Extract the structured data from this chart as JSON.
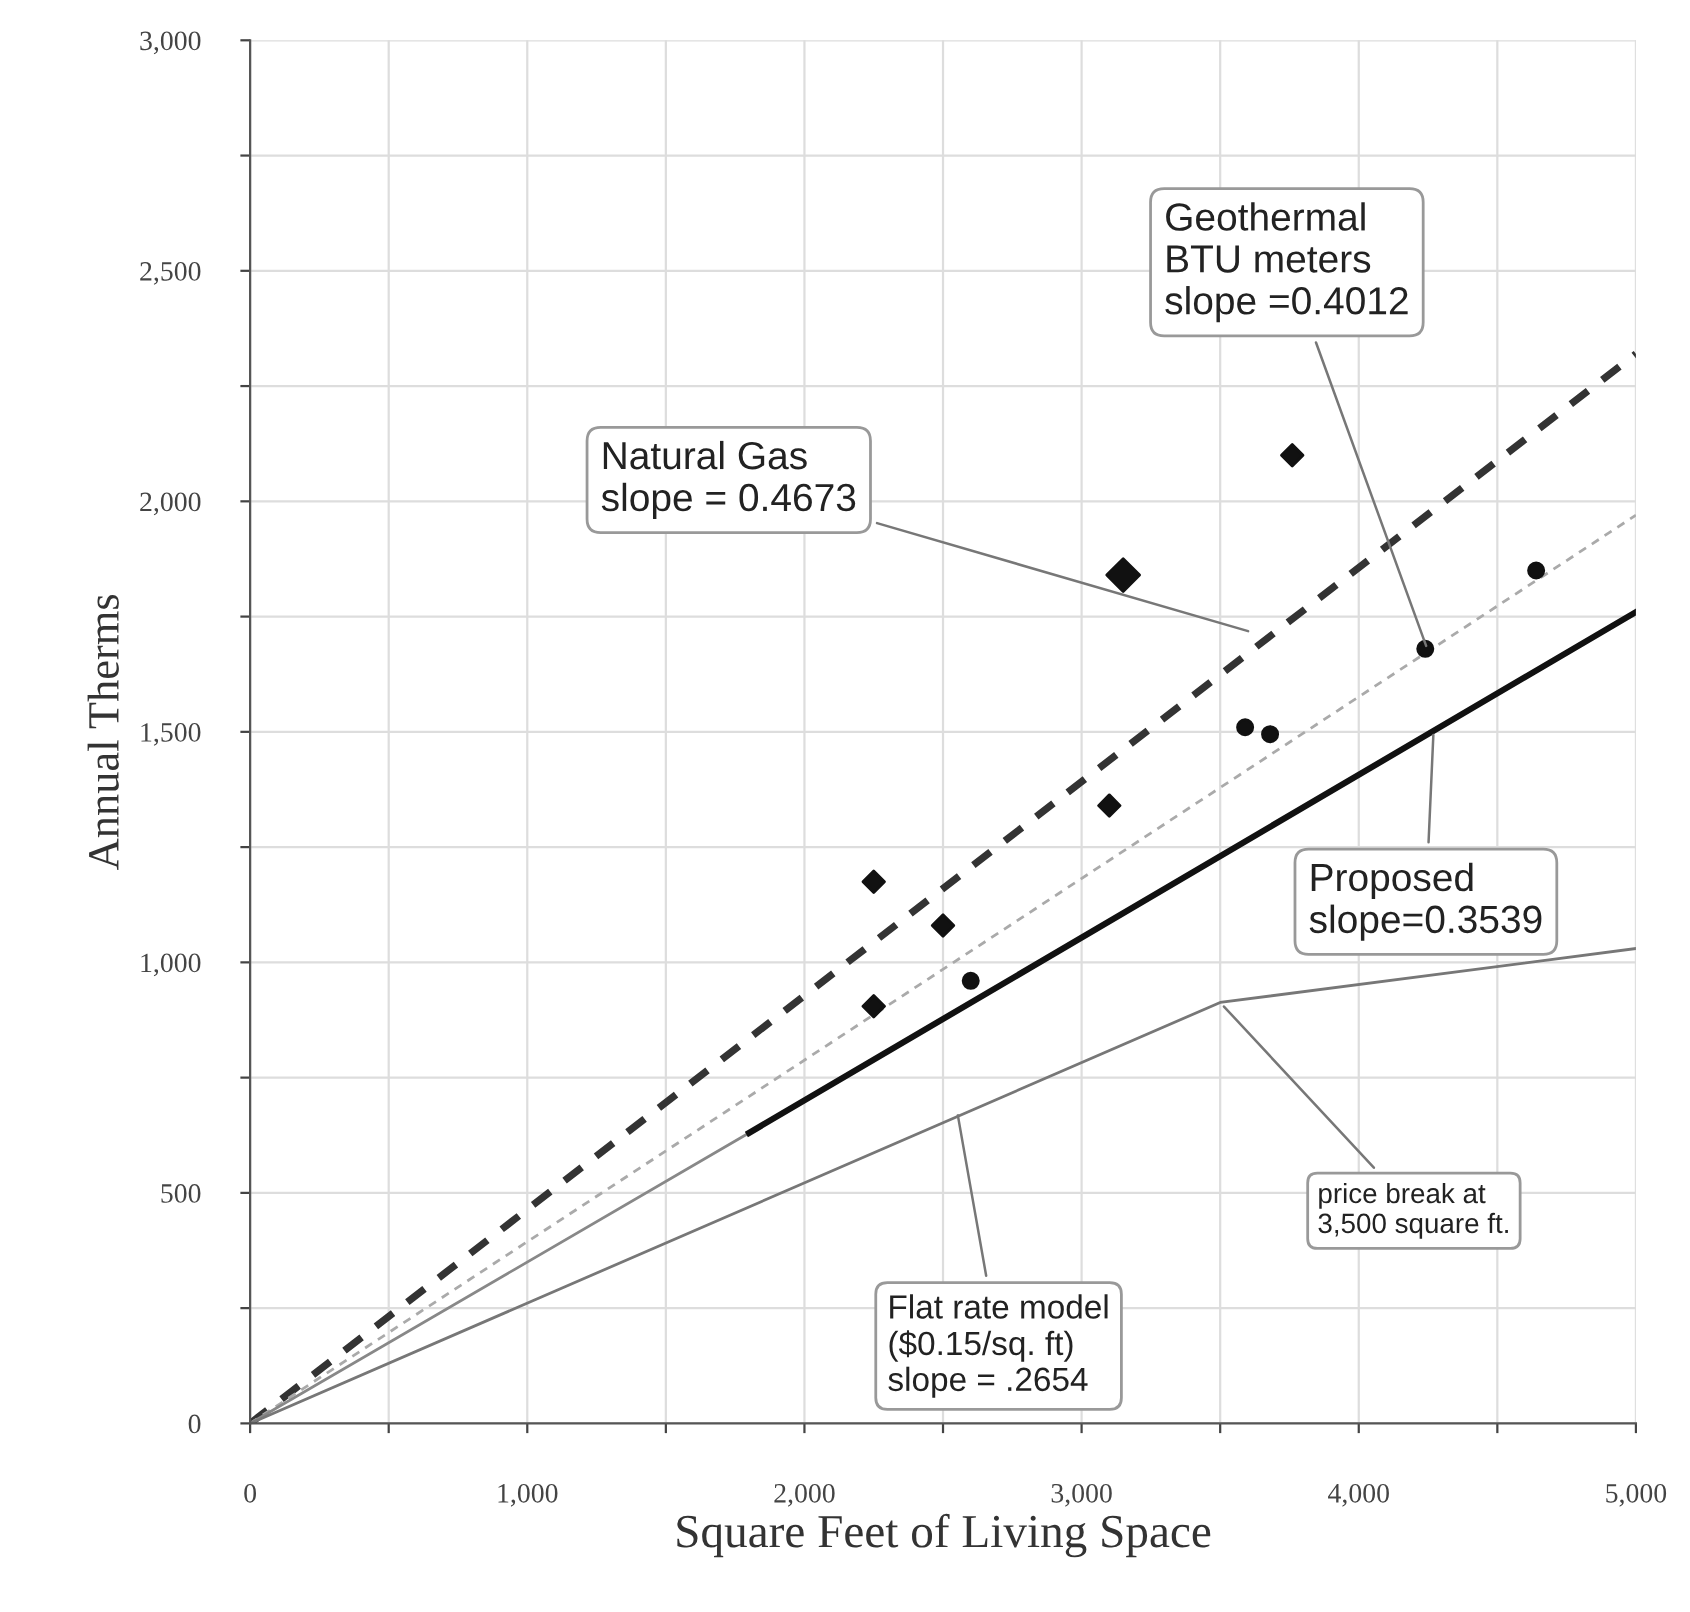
{
  "chart_data": {
    "type": "line",
    "xlabel": "Square Feet of Living Space",
    "ylabel": "Annual Therms",
    "xlim": [
      0,
      5000
    ],
    "ylim": [
      0,
      3000
    ],
    "xticks": [
      0,
      {
        "value": 500,
        "label": null
      },
      {
        "value": 1000,
        "label": "1,000"
      },
      {
        "value": 1500,
        "label": null
      },
      {
        "value": 2000,
        "label": "2,000"
      },
      {
        "value": 2500,
        "label": null
      },
      {
        "value": 3000,
        "label": "3,000"
      },
      {
        "value": 3500,
        "label": null
      },
      {
        "value": 4000,
        "label": "4,000"
      },
      {
        "value": 4500,
        "label": null
      },
      {
        "value": 5000,
        "label": "5,000"
      }
    ],
    "yticks": [
      0,
      {
        "value": 250,
        "label": null
      },
      500,
      {
        "value": 750,
        "label": null
      },
      {
        "value": 1000,
        "label": "1,000"
      },
      {
        "value": 1250,
        "label": null
      },
      {
        "value": 1500,
        "label": "1,500"
      },
      {
        "value": 1750,
        "label": null
      },
      {
        "value": 2000,
        "label": "2,000"
      },
      {
        "value": 2250,
        "label": null
      },
      {
        "value": 2500,
        "label": "2,500"
      },
      {
        "value": 2750,
        "label": null
      },
      {
        "value": 3000,
        "label": "3,000"
      }
    ],
    "grid": true,
    "series": [
      {
        "color": "#333333",
        "line_style": "dashed",
        "x": [
          0,
          5000
        ],
        "values": [
          0,
          2320
        ]
      },
      {
        "color": "#aaaaaa",
        "line_style": "dashed",
        "x": [
          0,
          5000
        ],
        "values": [
          0,
          1970
        ]
      },
      {
        "color": "#888888",
        "line_style": "solid",
        "x": [
          0,
          1800
        ],
        "values": [
          0,
          630
        ]
      },
      {
        "color": "#111111",
        "line_style": "solid",
        "x": [
          1800,
          5000
        ],
        "values": [
          630,
          1760
        ]
      },
      {
        "color": "#777777",
        "line_style": "solid",
        "x": [
          0,
          3500,
          5000
        ],
        "values": [
          0,
          913,
          1030
        ]
      },
      {
        "type": "scatter",
        "color": "#111111",
        "marker": "diamond",
        "x": [
          2250,
          2500,
          2250,
          3100,
          3760
        ],
        "values": [
          1175,
          1080,
          905,
          1340,
          2100
        ]
      },
      {
        "type": "scatter",
        "color": "#111111",
        "marker": "diamond",
        "x": [
          3150
        ],
        "values": [
          1840
        ],
        "sizes": [
          1
        ]
      },
      {
        "type": "scatter",
        "color": "#111111",
        "marker": "circle",
        "x": [
          2600,
          3590,
          3680,
          4240,
          4640
        ],
        "values": [
          960,
          1510,
          1495,
          1680,
          1850
        ]
      }
    ],
    "annotations": [
      {
        "text": "Natural Gas\nslope = 0.4673",
        "x": 3620,
        "y": 1715
      },
      {
        "text": "Geothermal\nBTU meters\nslope =0.4012",
        "x": 4250,
        "y": 1675
      },
      {
        "text": "Proposed\nslope=0.3539",
        "x": 4270,
        "y": 1505
      },
      {
        "text": "price break at\n3,500 square ft.",
        "x": 3500,
        "y": 913
      },
      {
        "text": "Flat rate model\n($0.15/sq. ft)\nslope = .2654",
        "x": 2550,
        "y": 680
      }
    ]
  }
}
